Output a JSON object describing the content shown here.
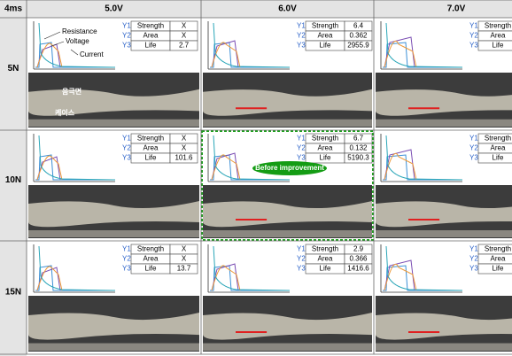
{
  "header": {
    "corner": "4ms",
    "columns": [
      "5.0V",
      "6.0V",
      "7.0V"
    ]
  },
  "metrics": [
    {
      "axis": "Y1",
      "name": "Strength"
    },
    {
      "axis": "Y2",
      "name": "Area"
    },
    {
      "axis": "Y3",
      "name": "Life"
    }
  ],
  "rows": [
    {
      "label": "5N",
      "cells": [
        {
          "values": [
            "X",
            "X",
            2.7
          ]
        },
        {
          "values": [
            6.4,
            0.362,
            2955.9
          ]
        },
        null
      ]
    },
    {
      "label": "10N",
      "cells": [
        {
          "values": [
            "X",
            "X",
            101.6
          ]
        },
        {
          "values": [
            6.7,
            0.132,
            5190.3
          ]
        },
        null
      ]
    },
    {
      "label": "15N",
      "cells": [
        {
          "values": [
            "X",
            "X",
            13.7
          ]
        },
        {
          "values": [
            2.9,
            0.366,
            1416.6
          ]
        },
        null
      ]
    }
  ],
  "annotations": {
    "resistance": "Resistance",
    "voltage": "Voltage",
    "current": "Current",
    "photo_top": "음극면",
    "photo_bottom": "케이스",
    "badge": "Before improvement"
  }
}
